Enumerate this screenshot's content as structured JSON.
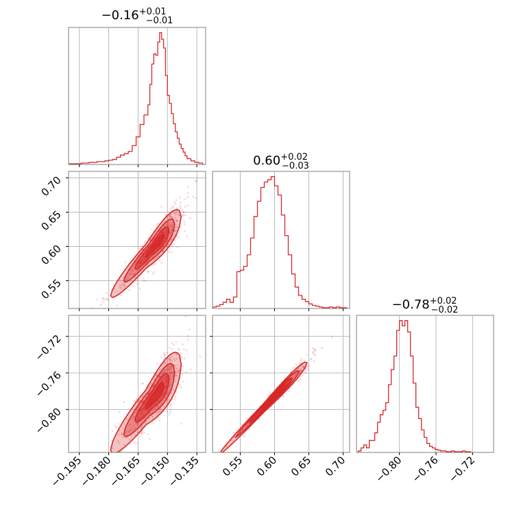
{
  "chart_data": {
    "type": "corner",
    "color": "#d62728",
    "parameters": [
      {
        "title_value": "−0.16",
        "title_plus": "+0.01",
        "title_minus": "−0.01",
        "range": [
          -0.2005,
          -0.1305
        ],
        "ticks": [
          -0.195,
          -0.18,
          -0.165,
          -0.15,
          -0.135
        ],
        "tick_labels": [
          "−0.195",
          "−0.180",
          "−0.165",
          "−0.150",
          "−0.135"
        ],
        "hist_bins": [
          -0.2,
          -0.198,
          -0.196,
          -0.194,
          -0.192,
          -0.19,
          -0.188,
          -0.186,
          -0.184,
          -0.182,
          -0.18,
          -0.178,
          -0.176,
          -0.174,
          -0.172,
          -0.17,
          -0.168,
          -0.166,
          -0.164,
          -0.162,
          -0.16,
          -0.159,
          -0.158,
          -0.157,
          -0.156,
          -0.155,
          -0.154,
          -0.153,
          -0.152,
          -0.151,
          -0.15,
          -0.149,
          -0.148,
          -0.147,
          -0.146,
          -0.145,
          -0.144,
          -0.143,
          -0.142,
          -0.141,
          -0.14,
          -0.138,
          -0.136,
          -0.134,
          -0.132
        ],
        "hist_counts": [
          1,
          1,
          1,
          2,
          2,
          3,
          3,
          4,
          4,
          5,
          6,
          7,
          10,
          13,
          15,
          18,
          26,
          38,
          55,
          68,
          82,
          110,
          138,
          152,
          150,
          168,
          181,
          172,
          160,
          122,
          95,
          84,
          70,
          56,
          45,
          36,
          28,
          22,
          17,
          12,
          8,
          5,
          3,
          2
        ]
      },
      {
        "title_value": "0.60",
        "title_plus": "+0.02",
        "title_minus": "−0.03",
        "range": [
          0.5095,
          0.7095
        ],
        "ticks": [
          0.55,
          0.6,
          0.65,
          0.7
        ],
        "tick_labels": [
          "0.55",
          "0.60",
          "0.65",
          "0.70"
        ],
        "hist_bins": [
          0.51,
          0.515,
          0.52,
          0.525,
          0.53,
          0.535,
          0.54,
          0.545,
          0.55,
          0.555,
          0.56,
          0.565,
          0.57,
          0.575,
          0.58,
          0.585,
          0.59,
          0.595,
          0.6,
          0.605,
          0.61,
          0.615,
          0.62,
          0.625,
          0.63,
          0.635,
          0.64,
          0.645,
          0.65,
          0.655,
          0.66,
          0.665,
          0.67,
          0.675,
          0.68,
          0.685,
          0.69,
          0.695,
          0.7,
          0.705
        ],
        "hist_counts": [
          2,
          3,
          5,
          8,
          12,
          8,
          15,
          48,
          50,
          55,
          70,
          92,
          120,
          140,
          158,
          165,
          168,
          172,
          160,
          148,
          122,
          95,
          70,
          45,
          28,
          17,
          12,
          9,
          6,
          4,
          3,
          2,
          1,
          1,
          2,
          1,
          2,
          1,
          1
        ]
      },
      {
        "title_value": "−0.78",
        "title_plus": "+0.02",
        "title_minus": "−0.02",
        "range": [
          -0.847,
          -0.697
        ],
        "ticks": [
          -0.8,
          -0.76,
          -0.72
        ],
        "tick_labels": [
          "−0.80",
          "−0.76",
          "−0.72"
        ],
        "hist_bins": [
          -0.845,
          -0.842,
          -0.839,
          -0.836,
          -0.833,
          -0.83,
          -0.827,
          -0.824,
          -0.821,
          -0.818,
          -0.815,
          -0.812,
          -0.809,
          -0.806,
          -0.803,
          -0.8,
          -0.797,
          -0.794,
          -0.791,
          -0.788,
          -0.785,
          -0.782,
          -0.779,
          -0.776,
          -0.773,
          -0.77,
          -0.767,
          -0.764,
          -0.761,
          -0.758,
          -0.755,
          -0.752,
          -0.749,
          -0.746,
          -0.743,
          -0.74,
          -0.737,
          -0.734,
          -0.731,
          -0.728,
          -0.725,
          -0.722
        ],
        "hist_counts": [
          2,
          6,
          10,
          6,
          16,
          16,
          26,
          40,
          50,
          56,
          66,
          90,
          110,
          128,
          162,
          175,
          168,
          175,
          160,
          128,
          92,
          60,
          45,
          30,
          20,
          12,
          8,
          6,
          4,
          3,
          2,
          2,
          1,
          1,
          2,
          1,
          1,
          1,
          2,
          1,
          1
        ]
      }
    ],
    "correlations": {
      "p1_vs_p0": {
        "slope": 3.2,
        "spread": 0.011
      },
      "p2_vs_p0": {
        "slope": 2.6,
        "spread": 0.012
      },
      "p2_vs_p1": {
        "slope": 0.78,
        "spread": 0.003
      }
    }
  }
}
